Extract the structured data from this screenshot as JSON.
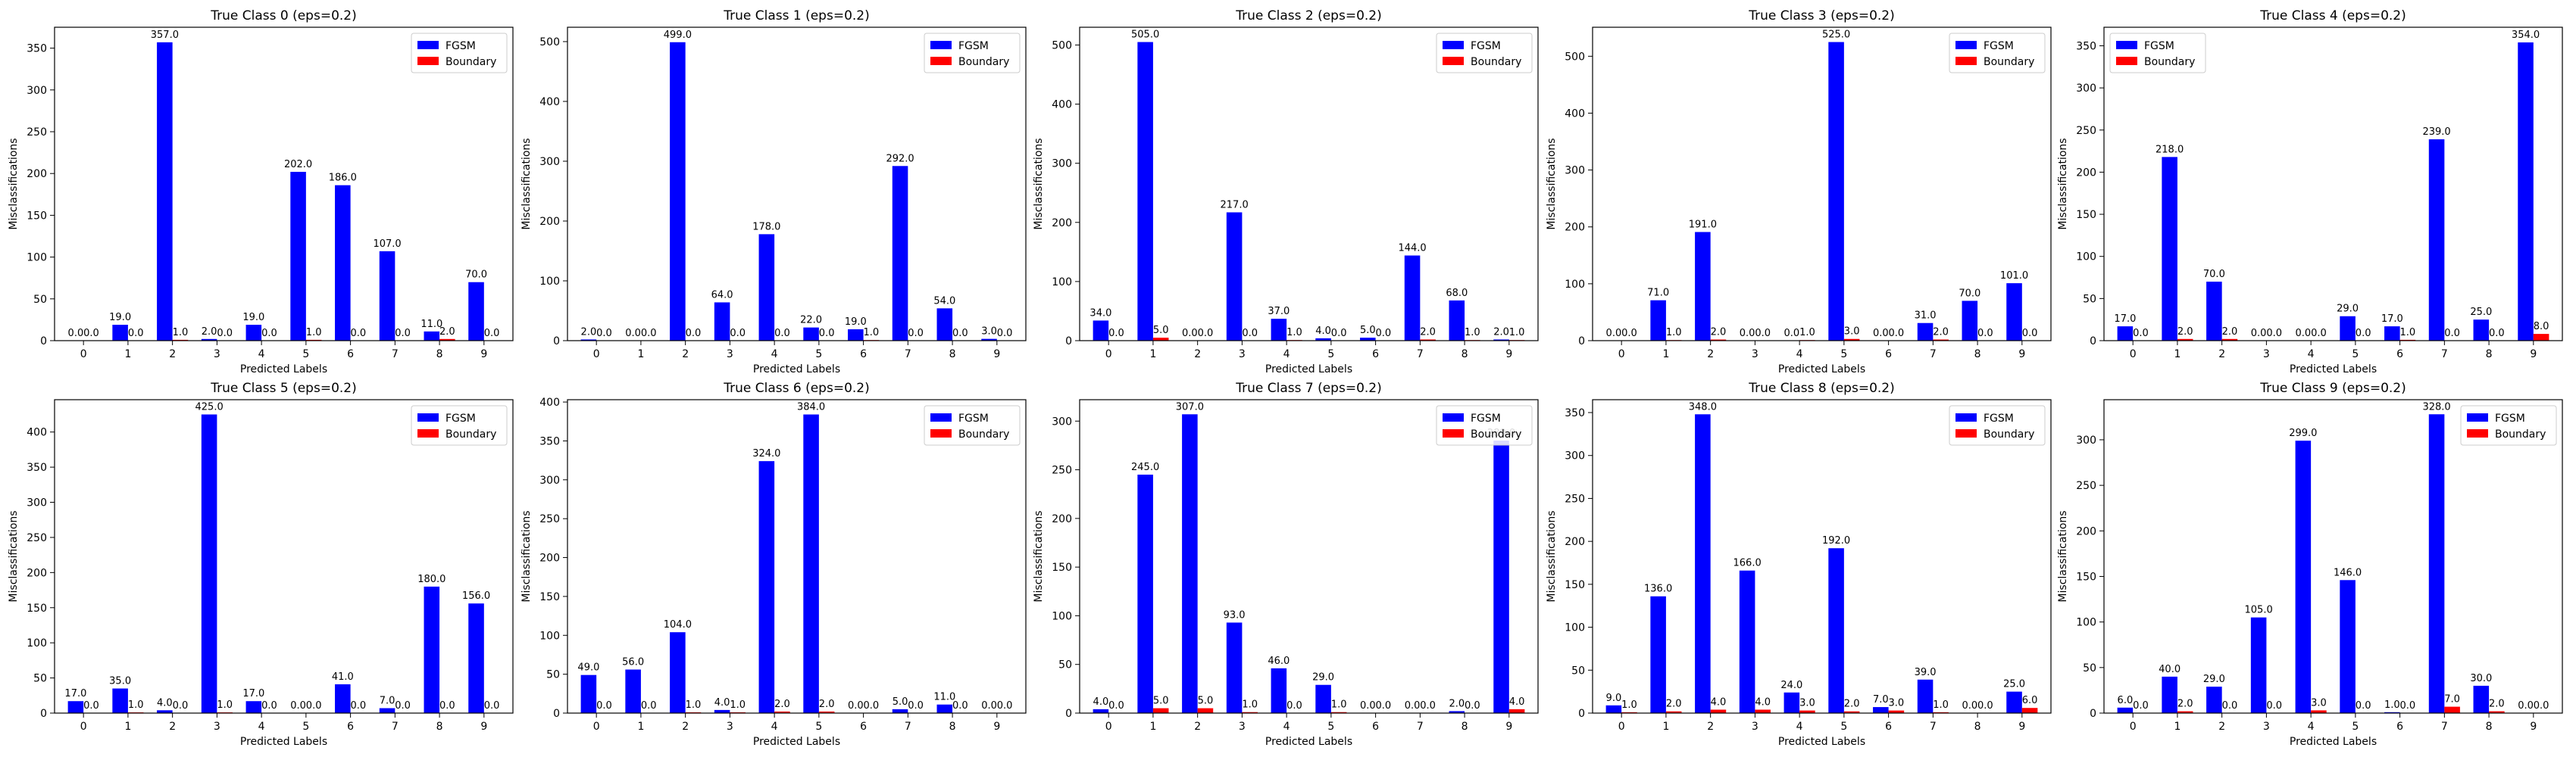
{
  "figure": {
    "legend_labels": [
      "FGSM",
      "Boundary"
    ],
    "colors": {
      "fgsm": "#0000ff",
      "boundary": "#ff0000"
    }
  },
  "chart_data": [
    {
      "type": "bar",
      "title": "True Class 0 (eps=0.2)",
      "xlabel": "Predicted Labels",
      "ylabel": "Misclassifications",
      "categories": [
        "0",
        "1",
        "2",
        "3",
        "4",
        "5",
        "6",
        "7",
        "8",
        "9"
      ],
      "ylim": [
        0,
        375
      ],
      "yticks": [
        0,
        50,
        100,
        150,
        200,
        250,
        300,
        350
      ],
      "legend": "top-right",
      "grid": false,
      "series": [
        {
          "name": "FGSM",
          "values": [
            0,
            19,
            357,
            2,
            19,
            202,
            186,
            107,
            11,
            70
          ]
        },
        {
          "name": "Boundary",
          "values": [
            0,
            0,
            1,
            0,
            0,
            1,
            0,
            0,
            2,
            0
          ]
        }
      ]
    },
    {
      "type": "bar",
      "title": "True Class 1 (eps=0.2)",
      "xlabel": "Predicted Labels",
      "ylabel": "Misclassifications",
      "categories": [
        "0",
        "1",
        "2",
        "3",
        "4",
        "5",
        "6",
        "7",
        "8",
        "9"
      ],
      "ylim": [
        0,
        524
      ],
      "yticks": [
        0,
        100,
        200,
        300,
        400,
        500
      ],
      "legend": "top-right",
      "grid": false,
      "series": [
        {
          "name": "FGSM",
          "values": [
            2,
            0,
            499,
            64,
            178,
            22,
            19,
            292,
            54,
            3
          ]
        },
        {
          "name": "Boundary",
          "values": [
            0,
            0,
            0,
            0,
            0,
            0,
            1,
            0,
            0,
            0
          ]
        }
      ]
    },
    {
      "type": "bar",
      "title": "True Class 2 (eps=0.2)",
      "xlabel": "Predicted Labels",
      "ylabel": "Misclassifications",
      "categories": [
        "0",
        "1",
        "2",
        "3",
        "4",
        "5",
        "6",
        "7",
        "8",
        "9"
      ],
      "ylim": [
        0,
        530
      ],
      "yticks": [
        0,
        100,
        200,
        300,
        400,
        500
      ],
      "legend": "top-right",
      "grid": false,
      "series": [
        {
          "name": "FGSM",
          "values": [
            34,
            505,
            0,
            217,
            37,
            4,
            5,
            144,
            68,
            2
          ]
        },
        {
          "name": "Boundary",
          "values": [
            0,
            5,
            0,
            0,
            1,
            0,
            0,
            2,
            1,
            1
          ]
        }
      ]
    },
    {
      "type": "bar",
      "title": "True Class 3 (eps=0.2)",
      "xlabel": "Predicted Labels",
      "ylabel": "Misclassifications",
      "categories": [
        "0",
        "1",
        "2",
        "3",
        "4",
        "5",
        "6",
        "7",
        "8",
        "9"
      ],
      "ylim": [
        0,
        551
      ],
      "yticks": [
        0,
        100,
        200,
        300,
        400,
        500
      ],
      "legend": "top-right",
      "grid": false,
      "series": [
        {
          "name": "FGSM",
          "values": [
            0,
            71,
            191,
            0,
            0,
            525,
            0,
            31,
            70,
            101
          ]
        },
        {
          "name": "Boundary",
          "values": [
            0,
            1,
            2,
            0,
            1,
            3,
            0,
            2,
            0,
            0
          ]
        }
      ]
    },
    {
      "type": "bar",
      "title": "True Class 4 (eps=0.2)",
      "xlabel": "Predicted Labels",
      "ylabel": "Misclassifications",
      "categories": [
        "0",
        "1",
        "2",
        "3",
        "4",
        "5",
        "6",
        "7",
        "8",
        "9"
      ],
      "ylim": [
        0,
        372
      ],
      "yticks": [
        0,
        50,
        100,
        150,
        200,
        250,
        300,
        350
      ],
      "legend": "top-left",
      "grid": false,
      "series": [
        {
          "name": "FGSM",
          "values": [
            17,
            218,
            70,
            0,
            0,
            29,
            17,
            239,
            25,
            354
          ]
        },
        {
          "name": "Boundary",
          "values": [
            0,
            2,
            2,
            0,
            0,
            0,
            1,
            0,
            0,
            8
          ]
        }
      ]
    },
    {
      "type": "bar",
      "title": "True Class 5 (eps=0.2)",
      "xlabel": "Predicted Labels",
      "ylabel": "Misclassifications",
      "categories": [
        "0",
        "1",
        "2",
        "3",
        "4",
        "5",
        "6",
        "7",
        "8",
        "9"
      ],
      "ylim": [
        0,
        446
      ],
      "yticks": [
        0,
        50,
        100,
        150,
        200,
        250,
        300,
        350,
        400
      ],
      "legend": "top-right",
      "grid": false,
      "series": [
        {
          "name": "FGSM",
          "values": [
            17,
            35,
            4,
            425,
            17,
            0,
            41,
            7,
            180,
            156
          ]
        },
        {
          "name": "Boundary",
          "values": [
            0,
            1,
            0,
            1,
            0,
            0,
            0,
            0,
            0,
            0
          ]
        }
      ]
    },
    {
      "type": "bar",
      "title": "True Class 6 (eps=0.2)",
      "xlabel": "Predicted Labels",
      "ylabel": "Misclassifications",
      "categories": [
        "0",
        "1",
        "2",
        "3",
        "4",
        "5",
        "6",
        "7",
        "8",
        "9"
      ],
      "ylim": [
        0,
        403
      ],
      "yticks": [
        0,
        50,
        100,
        150,
        200,
        250,
        300,
        350,
        400
      ],
      "legend": "top-right",
      "grid": false,
      "series": [
        {
          "name": "FGSM",
          "values": [
            49,
            56,
            104,
            4,
            324,
            384,
            0,
            5,
            11,
            0
          ]
        },
        {
          "name": "Boundary",
          "values": [
            0,
            0,
            1,
            1,
            2,
            2,
            0,
            0,
            0,
            0
          ]
        }
      ]
    },
    {
      "type": "bar",
      "title": "True Class 7 (eps=0.2)",
      "xlabel": "Predicted Labels",
      "ylabel": "Misclassifications",
      "categories": [
        "0",
        "1",
        "2",
        "3",
        "4",
        "5",
        "6",
        "7",
        "8",
        "9"
      ],
      "ylim": [
        0,
        322
      ],
      "yticks": [
        0,
        50,
        100,
        150,
        200,
        250,
        300
      ],
      "legend": "top-right",
      "grid": false,
      "series": [
        {
          "name": "FGSM",
          "values": [
            4,
            245,
            307,
            93,
            46,
            29,
            0,
            0,
            2,
            280
          ]
        },
        {
          "name": "Boundary",
          "values": [
            0,
            5,
            5,
            1,
            0,
            1,
            0,
            0,
            0,
            4
          ]
        }
      ]
    },
    {
      "type": "bar",
      "title": "True Class 8 (eps=0.2)",
      "xlabel": "Predicted Labels",
      "ylabel": "Misclassifications",
      "categories": [
        "0",
        "1",
        "2",
        "3",
        "4",
        "5",
        "6",
        "7",
        "8",
        "9"
      ],
      "ylim": [
        0,
        365
      ],
      "yticks": [
        0,
        50,
        100,
        150,
        200,
        250,
        300,
        350
      ],
      "legend": "top-right",
      "grid": false,
      "series": [
        {
          "name": "FGSM",
          "values": [
            9,
            136,
            348,
            166,
            24,
            192,
            7,
            39,
            0,
            25
          ]
        },
        {
          "name": "Boundary",
          "values": [
            1,
            2,
            4,
            4,
            3,
            2,
            3,
            1,
            0,
            6
          ]
        }
      ]
    },
    {
      "type": "bar",
      "title": "True Class 9 (eps=0.2)",
      "xlabel": "Predicted Labels",
      "ylabel": "Misclassifications",
      "categories": [
        "0",
        "1",
        "2",
        "3",
        "4",
        "5",
        "6",
        "7",
        "8",
        "9"
      ],
      "ylim": [
        0,
        344
      ],
      "yticks": [
        0,
        50,
        100,
        150,
        200,
        250,
        300
      ],
      "legend": "top-right",
      "grid": false,
      "series": [
        {
          "name": "FGSM",
          "values": [
            6,
            40,
            29,
            105,
            299,
            146,
            1,
            328,
            30,
            0
          ]
        },
        {
          "name": "Boundary",
          "values": [
            0,
            2,
            0,
            0,
            3,
            0,
            0,
            7,
            2,
            0
          ]
        }
      ]
    }
  ]
}
